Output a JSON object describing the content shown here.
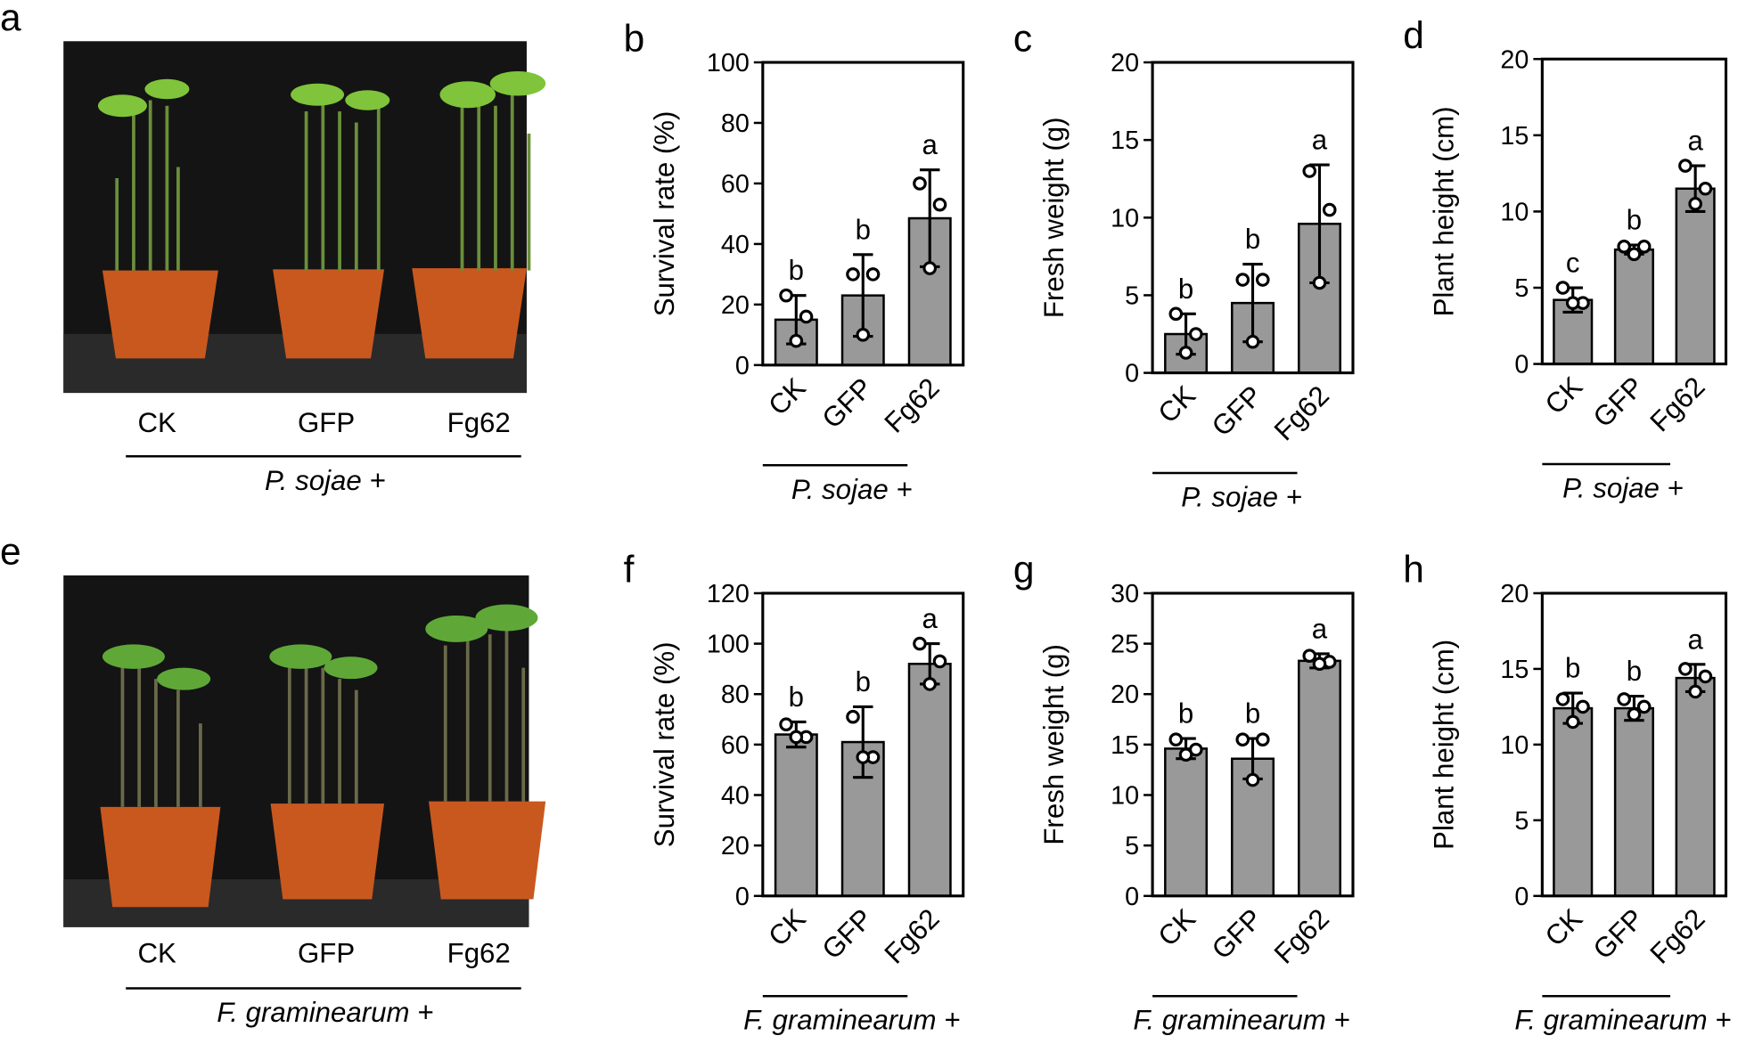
{
  "chart_data": [
    {
      "type": "bar",
      "letter": "b",
      "ylabel": "Survival  rate (%)",
      "categories": [
        "CK",
        "GFP",
        "Fg62"
      ],
      "group": "P. sojae +",
      "values": [
        15,
        23,
        48.5
      ],
      "error": [
        8,
        13.5,
        16
      ],
      "points": [
        [
          23,
          16,
          8
        ],
        [
          30,
          30,
          10
        ],
        [
          60,
          53,
          32
        ]
      ],
      "annotations": [
        "b",
        "b",
        "a"
      ],
      "color": "#999999",
      "ylim": [
        0,
        100
      ],
      "yticks": [
        0,
        20,
        40,
        60,
        80,
        100
      ]
    },
    {
      "type": "bar",
      "letter": "c",
      "ylabel": "Fresh weight (g)",
      "categories": [
        "CK",
        "GFP",
        "Fg62"
      ],
      "group": "P. sojae +",
      "values": [
        2.5,
        4.5,
        9.6
      ],
      "error": [
        1.3,
        2.5,
        3.8
      ],
      "points": [
        [
          3.8,
          2.5,
          1.3
        ],
        [
          6,
          6,
          2
        ],
        [
          13,
          10.5,
          5.8
        ]
      ],
      "annotations": [
        "b",
        "b",
        "a"
      ],
      "color": "#999999",
      "ylim": [
        0,
        20
      ],
      "yticks": [
        0,
        5,
        10,
        15,
        20
      ]
    },
    {
      "type": "bar",
      "letter": "d",
      "ylabel": "Plant height (cm)",
      "categories": [
        "CK",
        "GFP",
        "Fg62"
      ],
      "group": "P. sojae +",
      "values": [
        4.2,
        7.5,
        11.5
      ],
      "error": [
        0.8,
        0.3,
        1.5
      ],
      "points": [
        [
          5,
          4,
          4
        ],
        [
          7.7,
          7.7,
          7.2
        ],
        [
          13,
          11.5,
          10.5
        ]
      ],
      "annotations": [
        "c",
        "b",
        "a"
      ],
      "color": "#999999",
      "ylim": [
        0,
        20
      ],
      "yticks": [
        0,
        5,
        10,
        15,
        20
      ]
    },
    {
      "type": "bar",
      "letter": "f",
      "ylabel": "Survival  rate (%)",
      "categories": [
        "CK",
        "GFP",
        "Fg62"
      ],
      "group": "F. graminearum +",
      "values": [
        64,
        61,
        92
      ],
      "error": [
        5,
        14,
        8
      ],
      "points": [
        [
          68,
          63,
          63
        ],
        [
          71,
          55,
          55
        ],
        [
          100,
          93,
          84
        ]
      ],
      "annotations": [
        "b",
        "b",
        "a"
      ],
      "color": "#999999",
      "ylim": [
        0,
        120
      ],
      "yticks": [
        0,
        20,
        40,
        60,
        80,
        100,
        120
      ]
    },
    {
      "type": "bar",
      "letter": "g",
      "ylabel": "Fresh weight (g)",
      "categories": [
        "CK",
        "GFP",
        "Fg62"
      ],
      "group": "F. graminearum +",
      "values": [
        14.6,
        13.6,
        23.3
      ],
      "error": [
        1,
        2,
        0.7
      ],
      "points": [
        [
          15.5,
          14.5,
          14
        ],
        [
          15.5,
          15.5,
          11.5
        ],
        [
          23.8,
          23.2,
          23
        ]
      ],
      "annotations": [
        "b",
        "b",
        "a"
      ],
      "color": "#999999",
      "ylim": [
        0,
        30
      ],
      "yticks": [
        0,
        5,
        10,
        15,
        20,
        25,
        30
      ]
    },
    {
      "type": "bar",
      "letter": "h",
      "ylabel": "Plant height (cm)",
      "categories": [
        "CK",
        "GFP",
        "Fg62"
      ],
      "group": "F. graminearum +",
      "values": [
        12.4,
        12.4,
        14.4
      ],
      "error": [
        1,
        0.8,
        0.9
      ],
      "points": [
        [
          13,
          12.5,
          11.5
        ],
        [
          13,
          12.5,
          12
        ],
        [
          15,
          14.5,
          13.5
        ]
      ],
      "annotations": [
        "b",
        "b",
        "a"
      ],
      "color": "#999999",
      "ylim": [
        0,
        20
      ],
      "yticks": [
        0,
        5,
        10,
        15,
        20
      ]
    }
  ],
  "photos": [
    {
      "letter": "a",
      "labels": [
        "CK",
        "GFP",
        "Fg62"
      ],
      "group": "P. sojae +"
    },
    {
      "letter": "e",
      "labels": [
        "CK",
        "GFP",
        "Fg62"
      ],
      "group": "F. graminearum +"
    }
  ]
}
